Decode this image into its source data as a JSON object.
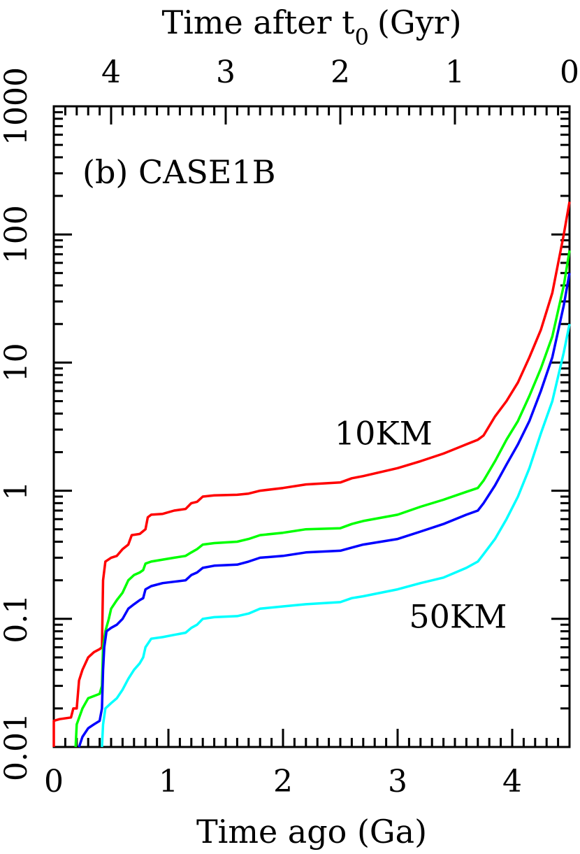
{
  "chart_data": {
    "type": "line",
    "panel_label": "(b) CASE1B",
    "xlabel": "Time ago (Ga)",
    "top_xlabel_main": "Time after t",
    "top_xlabel_sub": "0",
    "top_xlabel_unit": "(Gyr)",
    "ylabel": "",
    "xlim": [
      0,
      4.5
    ],
    "ylim": [
      0.01,
      1000
    ],
    "yscale": "log",
    "grid": false,
    "x_ticks": [
      0,
      1,
      2,
      3,
      4
    ],
    "x_tick_labels": [
      "0",
      "1",
      "2",
      "3",
      "4"
    ],
    "top_x_ticks": [
      4,
      3,
      2,
      1,
      0
    ],
    "top_x_tick_labels": [
      "4",
      "3",
      "2",
      "1",
      "0"
    ],
    "y_ticks": [
      0.01,
      0.1,
      1,
      10,
      100,
      1000
    ],
    "y_tick_labels": [
      "0.01",
      "0.1",
      "1",
      "10",
      "100",
      "1000"
    ],
    "annotations": [
      {
        "text": "10KM",
        "x": 2.45,
        "y": 2.3
      },
      {
        "text": "50KM",
        "x": 3.1,
        "y": 0.085
      }
    ],
    "series": [
      {
        "color": "#ff0000",
        "points": [
          [
            0.0,
            0.01
          ],
          [
            0.0,
            0.016
          ],
          [
            0.05,
            0.0165
          ],
          [
            0.15,
            0.017
          ],
          [
            0.17,
            0.02
          ],
          [
            0.2,
            0.02
          ],
          [
            0.22,
            0.033
          ],
          [
            0.25,
            0.04
          ],
          [
            0.3,
            0.05
          ],
          [
            0.35,
            0.055
          ],
          [
            0.4,
            0.058
          ],
          [
            0.42,
            0.06
          ],
          [
            0.43,
            0.2
          ],
          [
            0.45,
            0.28
          ],
          [
            0.5,
            0.3
          ],
          [
            0.55,
            0.31
          ],
          [
            0.6,
            0.35
          ],
          [
            0.65,
            0.38
          ],
          [
            0.68,
            0.45
          ],
          [
            0.75,
            0.46
          ],
          [
            0.8,
            0.5
          ],
          [
            0.82,
            0.62
          ],
          [
            0.85,
            0.65
          ],
          [
            0.95,
            0.66
          ],
          [
            1.05,
            0.7
          ],
          [
            1.15,
            0.72
          ],
          [
            1.2,
            0.8
          ],
          [
            1.25,
            0.82
          ],
          [
            1.3,
            0.9
          ],
          [
            1.4,
            0.92
          ],
          [
            1.6,
            0.93
          ],
          [
            1.7,
            0.95
          ],
          [
            1.8,
            1.0
          ],
          [
            2.0,
            1.05
          ],
          [
            2.2,
            1.12
          ],
          [
            2.5,
            1.16
          ],
          [
            2.6,
            1.25
          ],
          [
            2.7,
            1.3
          ],
          [
            3.0,
            1.5
          ],
          [
            3.2,
            1.7
          ],
          [
            3.4,
            1.95
          ],
          [
            3.6,
            2.3
          ],
          [
            3.7,
            2.5
          ],
          [
            3.75,
            2.7
          ],
          [
            3.85,
            3.8
          ],
          [
            3.95,
            5.0
          ],
          [
            4.05,
            7.0
          ],
          [
            4.15,
            11.0
          ],
          [
            4.25,
            18.0
          ],
          [
            4.35,
            35.0
          ],
          [
            4.45,
            100.0
          ],
          [
            4.5,
            180.0
          ]
        ]
      },
      {
        "color": "#00ff00",
        "points": [
          [
            0.19,
            0.01
          ],
          [
            0.2,
            0.015
          ],
          [
            0.25,
            0.02
          ],
          [
            0.3,
            0.024
          ],
          [
            0.4,
            0.026
          ],
          [
            0.42,
            0.03
          ],
          [
            0.43,
            0.06
          ],
          [
            0.45,
            0.08
          ],
          [
            0.48,
            0.1
          ],
          [
            0.5,
            0.12
          ],
          [
            0.55,
            0.14
          ],
          [
            0.6,
            0.16
          ],
          [
            0.65,
            0.2
          ],
          [
            0.7,
            0.22
          ],
          [
            0.75,
            0.23
          ],
          [
            0.78,
            0.24
          ],
          [
            0.8,
            0.27
          ],
          [
            0.85,
            0.28
          ],
          [
            0.95,
            0.29
          ],
          [
            1.05,
            0.3
          ],
          [
            1.15,
            0.31
          ],
          [
            1.2,
            0.33
          ],
          [
            1.25,
            0.35
          ],
          [
            1.3,
            0.38
          ],
          [
            1.4,
            0.39
          ],
          [
            1.6,
            0.4
          ],
          [
            1.7,
            0.42
          ],
          [
            1.8,
            0.45
          ],
          [
            2.0,
            0.47
          ],
          [
            2.2,
            0.5
          ],
          [
            2.5,
            0.51
          ],
          [
            2.6,
            0.55
          ],
          [
            2.7,
            0.58
          ],
          [
            3.0,
            0.65
          ],
          [
            3.2,
            0.75
          ],
          [
            3.4,
            0.85
          ],
          [
            3.6,
            0.98
          ],
          [
            3.7,
            1.05
          ],
          [
            3.75,
            1.2
          ],
          [
            3.85,
            1.7
          ],
          [
            3.95,
            2.5
          ],
          [
            4.05,
            3.5
          ],
          [
            4.15,
            5.5
          ],
          [
            4.25,
            9.0
          ],
          [
            4.35,
            16.0
          ],
          [
            4.45,
            40.0
          ],
          [
            4.5,
            75.0
          ]
        ]
      },
      {
        "color": "#0000ff",
        "points": [
          [
            0.22,
            0.01
          ],
          [
            0.25,
            0.012
          ],
          [
            0.3,
            0.014
          ],
          [
            0.35,
            0.015
          ],
          [
            0.4,
            0.016
          ],
          [
            0.42,
            0.02
          ],
          [
            0.43,
            0.04
          ],
          [
            0.44,
            0.06
          ],
          [
            0.46,
            0.08
          ],
          [
            0.5,
            0.085
          ],
          [
            0.55,
            0.09
          ],
          [
            0.6,
            0.1
          ],
          [
            0.65,
            0.12
          ],
          [
            0.7,
            0.13
          ],
          [
            0.75,
            0.14
          ],
          [
            0.78,
            0.145
          ],
          [
            0.8,
            0.17
          ],
          [
            0.85,
            0.18
          ],
          [
            0.95,
            0.19
          ],
          [
            1.05,
            0.195
          ],
          [
            1.15,
            0.2
          ],
          [
            1.2,
            0.22
          ],
          [
            1.25,
            0.23
          ],
          [
            1.3,
            0.25
          ],
          [
            1.4,
            0.26
          ],
          [
            1.6,
            0.265
          ],
          [
            1.7,
            0.28
          ],
          [
            1.8,
            0.3
          ],
          [
            2.0,
            0.31
          ],
          [
            2.2,
            0.33
          ],
          [
            2.5,
            0.34
          ],
          [
            2.6,
            0.36
          ],
          [
            2.7,
            0.38
          ],
          [
            3.0,
            0.42
          ],
          [
            3.2,
            0.48
          ],
          [
            3.4,
            0.55
          ],
          [
            3.6,
            0.65
          ],
          [
            3.7,
            0.7
          ],
          [
            3.75,
            0.8
          ],
          [
            3.85,
            1.1
          ],
          [
            3.95,
            1.6
          ],
          [
            4.05,
            2.3
          ],
          [
            4.15,
            3.5
          ],
          [
            4.25,
            6.0
          ],
          [
            4.35,
            11.0
          ],
          [
            4.45,
            28.0
          ],
          [
            4.5,
            50.0
          ]
        ]
      },
      {
        "color": "#00ffff",
        "points": [
          [
            0.42,
            0.01
          ],
          [
            0.43,
            0.015
          ],
          [
            0.45,
            0.02
          ],
          [
            0.5,
            0.022
          ],
          [
            0.55,
            0.024
          ],
          [
            0.6,
            0.028
          ],
          [
            0.65,
            0.034
          ],
          [
            0.7,
            0.04
          ],
          [
            0.75,
            0.045
          ],
          [
            0.78,
            0.05
          ],
          [
            0.8,
            0.06
          ],
          [
            0.85,
            0.07
          ],
          [
            0.95,
            0.072
          ],
          [
            1.05,
            0.075
          ],
          [
            1.15,
            0.078
          ],
          [
            1.2,
            0.085
          ],
          [
            1.25,
            0.09
          ],
          [
            1.3,
            0.1
          ],
          [
            1.4,
            0.103
          ],
          [
            1.6,
            0.105
          ],
          [
            1.7,
            0.11
          ],
          [
            1.8,
            0.12
          ],
          [
            2.0,
            0.125
          ],
          [
            2.2,
            0.13
          ],
          [
            2.5,
            0.135
          ],
          [
            2.6,
            0.145
          ],
          [
            2.7,
            0.15
          ],
          [
            3.0,
            0.17
          ],
          [
            3.2,
            0.19
          ],
          [
            3.4,
            0.21
          ],
          [
            3.6,
            0.25
          ],
          [
            3.7,
            0.28
          ],
          [
            3.75,
            0.32
          ],
          [
            3.85,
            0.42
          ],
          [
            3.95,
            0.6
          ],
          [
            4.05,
            0.9
          ],
          [
            4.15,
            1.5
          ],
          [
            4.25,
            2.8
          ],
          [
            4.35,
            5.0
          ],
          [
            4.45,
            12.0
          ],
          [
            4.5,
            20.0
          ]
        ]
      }
    ]
  }
}
